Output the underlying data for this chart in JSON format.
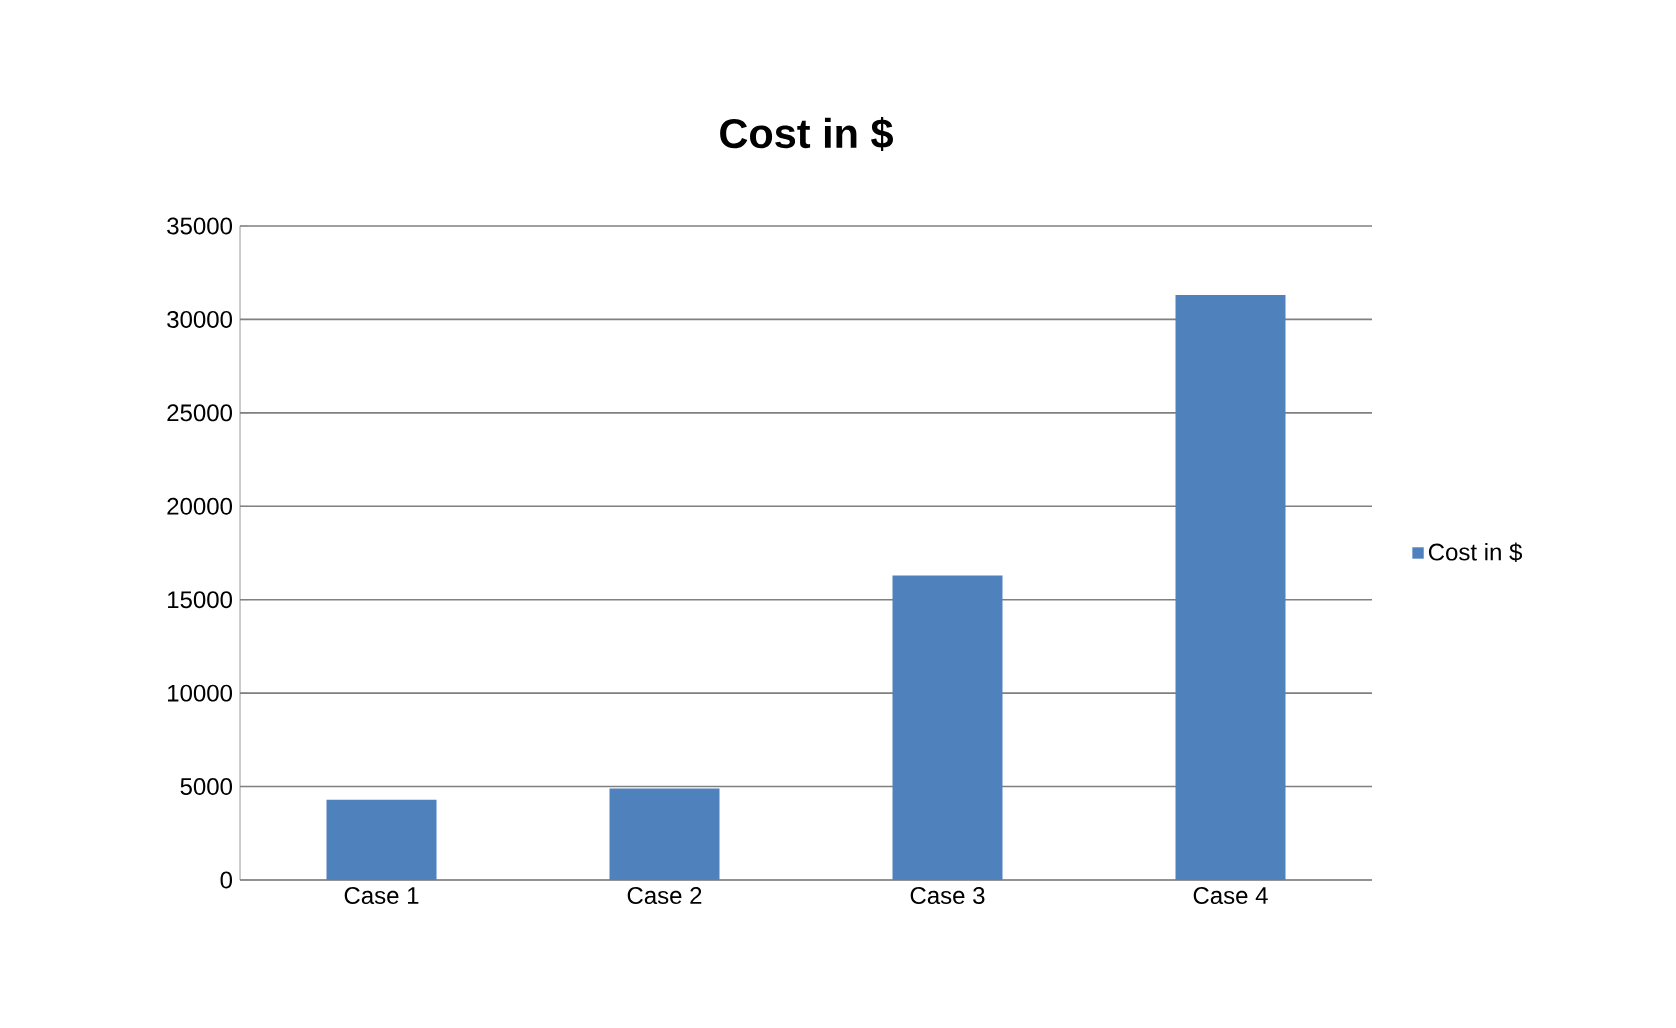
{
  "chart_data": {
    "type": "bar",
    "title": "Cost in $",
    "categories": [
      "Case 1",
      "Case 2",
      "Case 3",
      "Case 4"
    ],
    "series": [
      {
        "name": "Cost in $",
        "color": "#4f81bd",
        "values": [
          4300,
          4900,
          16300,
          31300
        ]
      }
    ],
    "ylim": [
      0,
      35000
    ],
    "yticks": [
      0,
      5000,
      10000,
      15000,
      20000,
      25000,
      30000,
      35000
    ],
    "grid": "y",
    "legend": "right"
  }
}
